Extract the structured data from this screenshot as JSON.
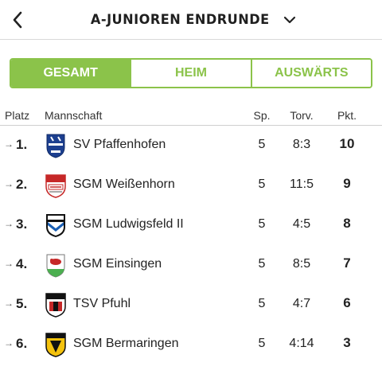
{
  "header": {
    "title": "A-JUNIOREN ENDRUNDE",
    "back_icon": "chevron-left-icon",
    "dropdown_icon": "chevron-down-icon"
  },
  "tabs": [
    {
      "label": "GESAMT",
      "active": true
    },
    {
      "label": "HEIM",
      "active": false
    },
    {
      "label": "AUSWÄRTS",
      "active": false
    }
  ],
  "table": {
    "columns": {
      "platz": "Platz",
      "mannschaft": "Mannschaft",
      "sp": "Sp.",
      "torv": "Torv.",
      "pkt": "Pkt."
    },
    "rows": [
      {
        "trend": "→",
        "rank": "1.",
        "team": "SV Pfaffenhofen",
        "sp": "5",
        "torv": "8:3",
        "pkt": "10",
        "logo": "sv-pfaffenhofen-crest"
      },
      {
        "trend": "→",
        "rank": "2.",
        "team": "SGM Weißenhorn",
        "sp": "5",
        "torv": "11:5",
        "pkt": "9",
        "logo": "fvw-crest"
      },
      {
        "trend": "→",
        "rank": "3.",
        "team": "SGM Ludwigsfeld II",
        "sp": "5",
        "torv": "4:5",
        "pkt": "8",
        "logo": "tsf-crest"
      },
      {
        "trend": "→",
        "rank": "4.",
        "team": "SGM Einsingen",
        "sp": "5",
        "torv": "8:5",
        "pkt": "7",
        "logo": "einsingen-crest"
      },
      {
        "trend": "→",
        "rank": "5.",
        "team": "TSV Pfuhl",
        "sp": "5",
        "torv": "4:7",
        "pkt": "6",
        "logo": "tsv-pfuhl-crest"
      },
      {
        "trend": "→",
        "rank": "6.",
        "team": "SGM Bermaringen",
        "sp": "5",
        "torv": "4:14",
        "pkt": "3",
        "logo": "bermaringen-crest"
      }
    ]
  },
  "colors": {
    "accent": "#8bc34a",
    "text": "#222222",
    "divider": "#cfcfcf"
  }
}
